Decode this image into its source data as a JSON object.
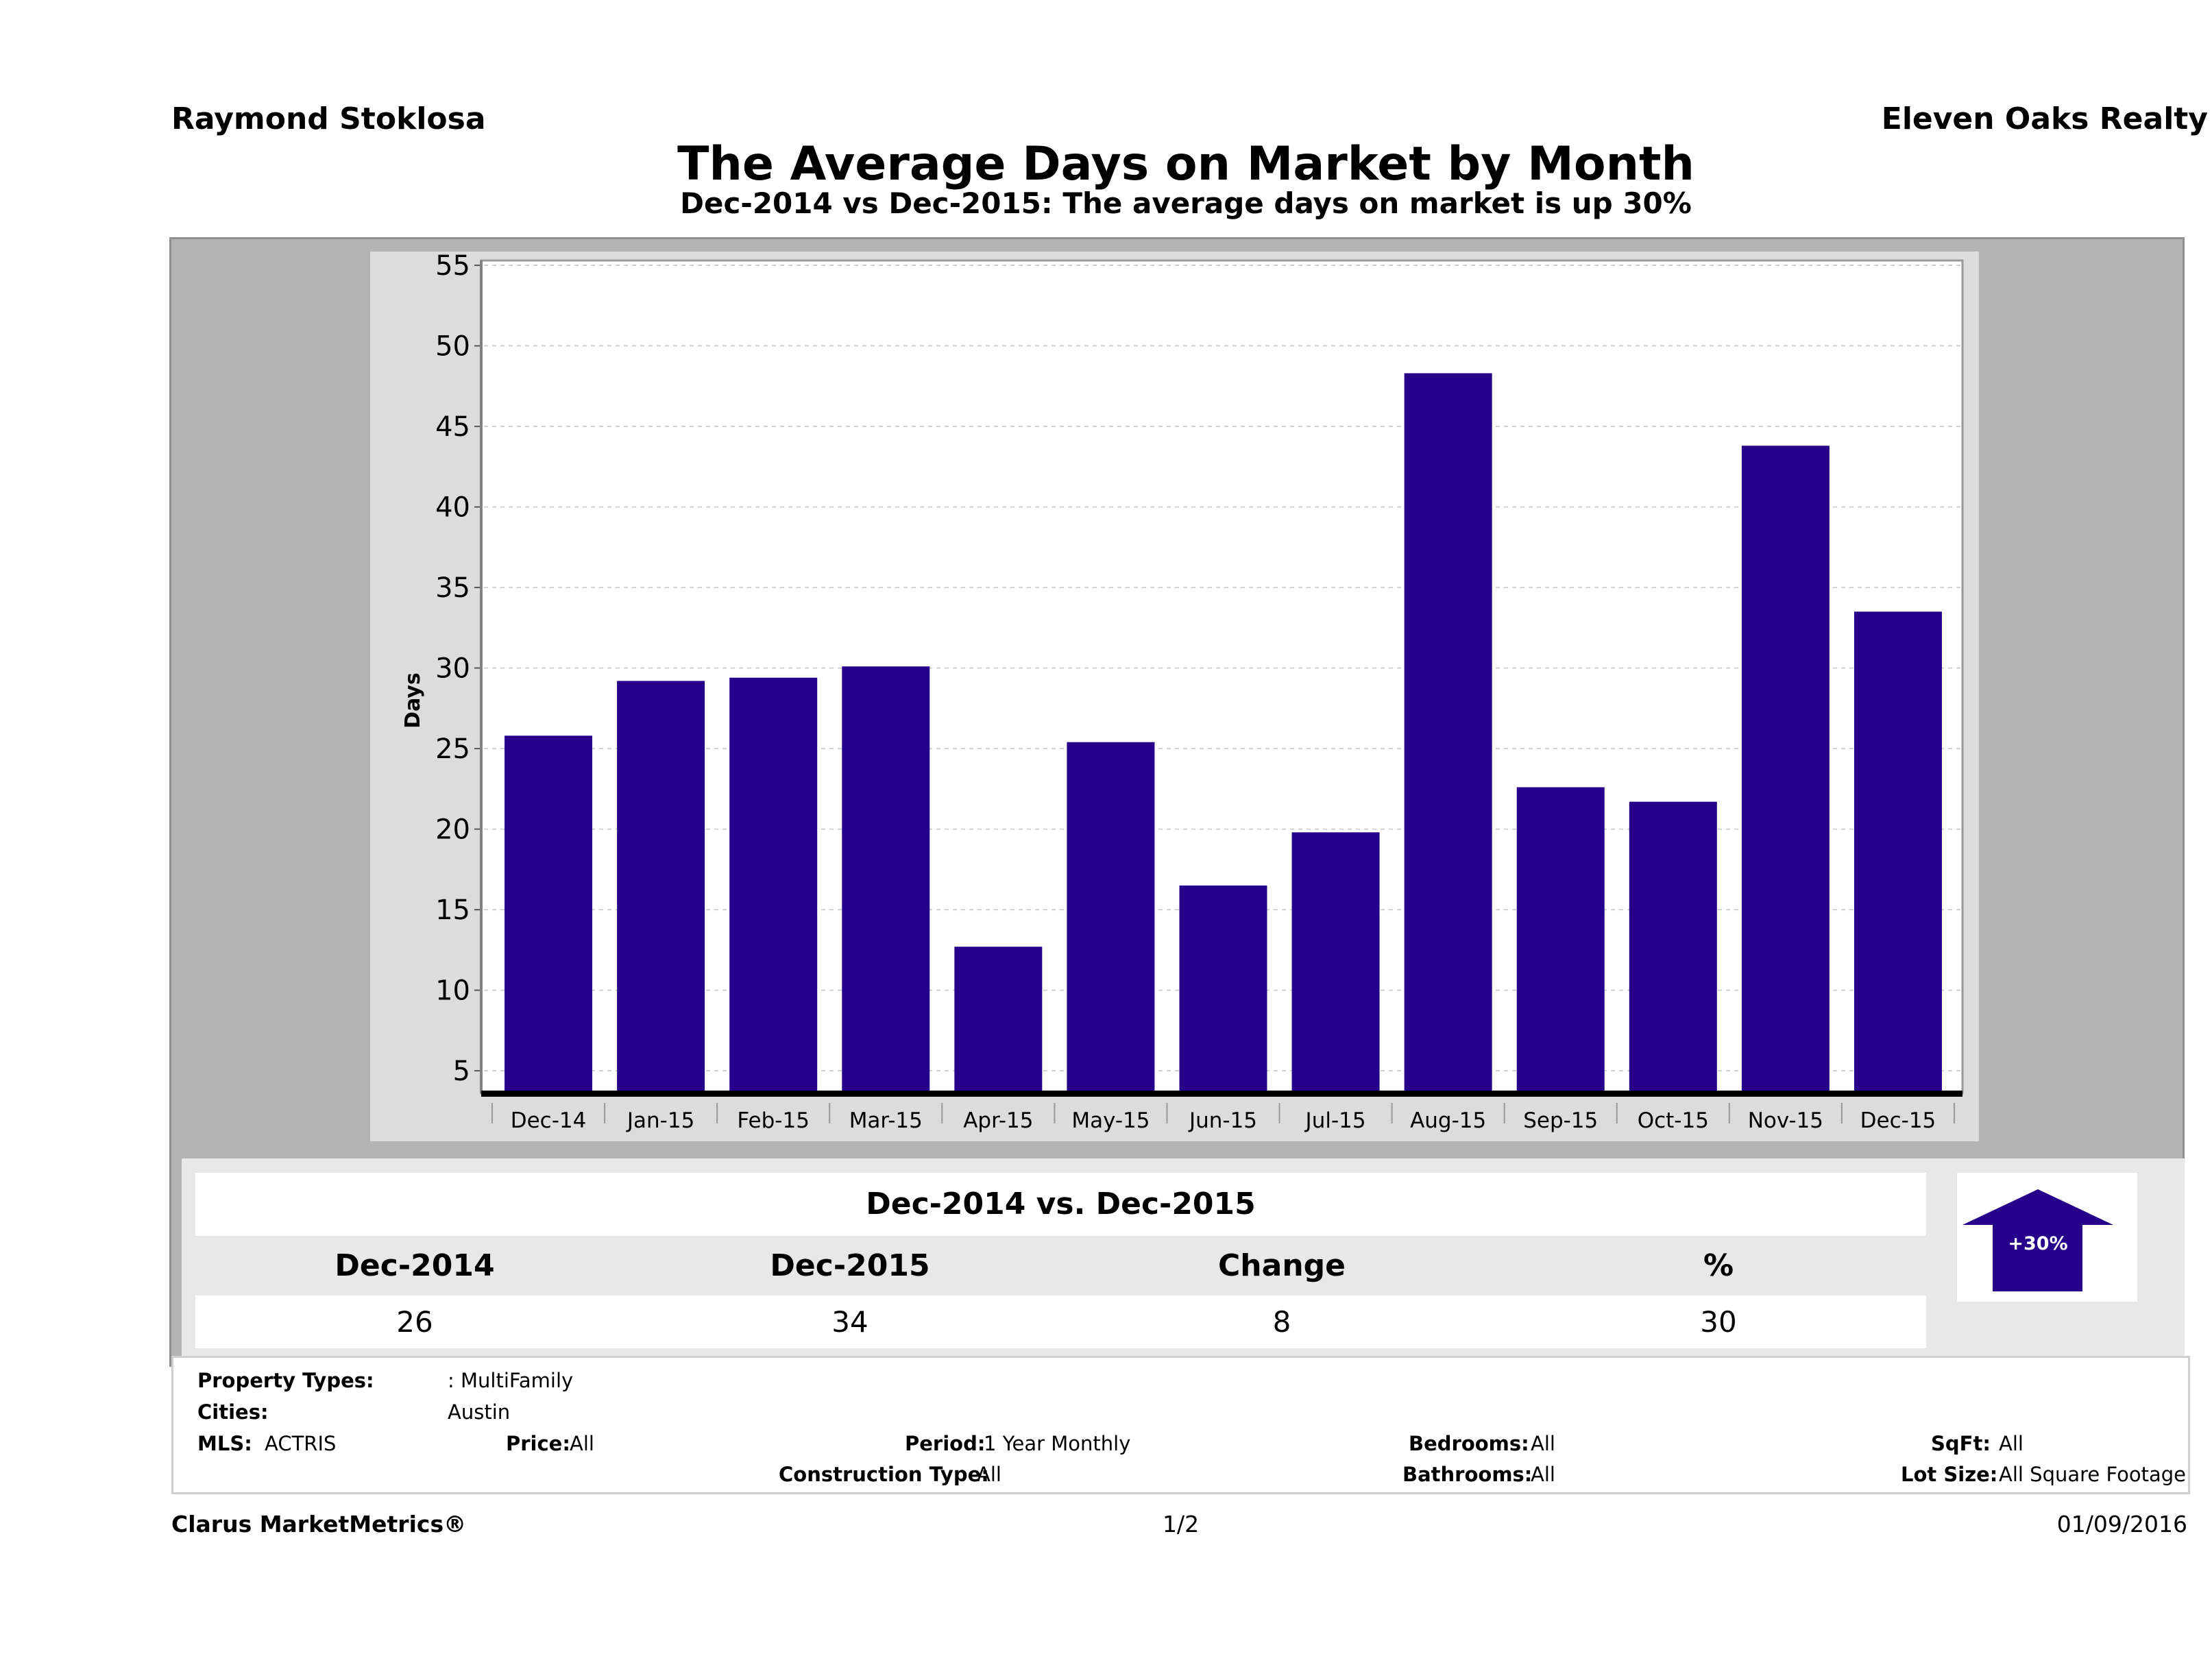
{
  "header": {
    "agent_name": "Raymond Stoklosa",
    "brokerage": "Eleven Oaks Realty",
    "title": "The Average Days on Market by Month",
    "subtitle": "Dec-2014 vs Dec-2015: The average days on market is up 30%"
  },
  "colors": {
    "bar": "#26008a",
    "outer_panel": "#b3b3b3",
    "chart_panel": "#dcdcdc",
    "plot_bg": "#ffffff",
    "gridline": "#cfcfcf"
  },
  "chart_data": {
    "type": "bar",
    "title": "The Average Days on Market by Month",
    "subtitle": "Dec-2014 vs Dec-2015: The average days on market is up 30%",
    "xlabel": "",
    "ylabel": "Days",
    "categories": [
      "Dec-14",
      "Jan-15",
      "Feb-15",
      "Mar-15",
      "Apr-15",
      "May-15",
      "Jun-15",
      "Jul-15",
      "Aug-15",
      "Sep-15",
      "Oct-15",
      "Nov-15",
      "Dec-15"
    ],
    "values": [
      25.8,
      29.2,
      29.4,
      30.1,
      12.7,
      25.4,
      16.5,
      19.8,
      48.3,
      22.6,
      21.7,
      43.8,
      33.5
    ],
    "yticks": [
      5,
      10,
      15,
      20,
      25,
      30,
      35,
      40,
      45,
      50,
      55
    ],
    "ylim": [
      3.6,
      55.3
    ],
    "grid": true,
    "legend": "none"
  },
  "comparison": {
    "title": "Dec-2014 vs. Dec-2015",
    "headers": [
      "Dec-2014",
      "Dec-2015",
      "Change",
      "%"
    ],
    "values": [
      "26",
      "34",
      "8",
      "30"
    ],
    "badge": {
      "label": "+30%",
      "direction": "up",
      "icon": "up-arrow-icon"
    }
  },
  "filters": {
    "property_types": {
      "label": "Property Types:",
      "value": ": MultiFamily"
    },
    "cities": {
      "label": "Cities:",
      "value": "Austin"
    },
    "mls": {
      "label": "MLS:",
      "value": "ACTRIS"
    },
    "price": {
      "label": "Price:",
      "value": "All"
    },
    "period": {
      "label": "Period:",
      "value": "1 Year Monthly"
    },
    "construction_type": {
      "label": "Construction Type:",
      "value": "All"
    },
    "bedrooms": {
      "label": "Bedrooms:",
      "value": "All"
    },
    "bathrooms": {
      "label": "Bathrooms:",
      "value": "All"
    },
    "sqft": {
      "label": "SqFt:",
      "value": "All"
    },
    "lot_size": {
      "label": "Lot Size:",
      "value": "All Square Footage"
    }
  },
  "footer": {
    "brand": "Clarus MarketMetrics®",
    "page": "1/2",
    "date": "01/09/2016"
  }
}
